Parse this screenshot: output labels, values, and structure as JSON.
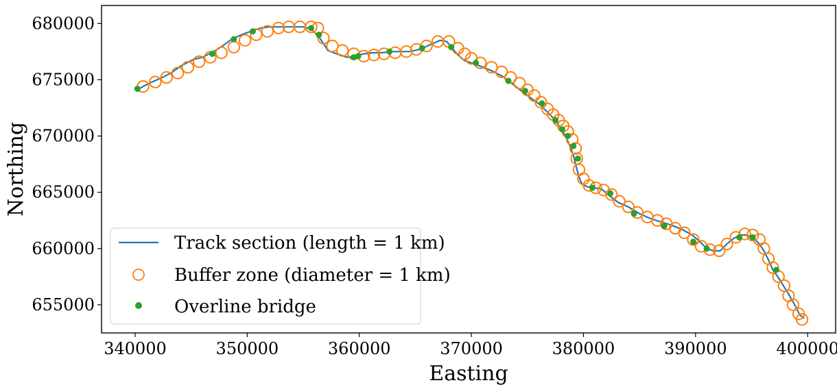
{
  "chart_data": {
    "type": "scatter",
    "xlabel": "Easting",
    "ylabel": "Northing",
    "xlim": [
      337000,
      402500
    ],
    "ylim": [
      652500,
      681600
    ],
    "xticks": [
      340000,
      350000,
      360000,
      370000,
      380000,
      390000,
      400000
    ],
    "yticks": [
      655000,
      660000,
      665000,
      670000,
      675000,
      680000
    ],
    "xtick_labels": [
      "340000",
      "350000",
      "360000",
      "370000",
      "380000",
      "390000",
      "400000"
    ],
    "ytick_labels": [
      "655000",
      "660000",
      "665000",
      "670000",
      "675000",
      "680000"
    ],
    "grid": false,
    "legend_position": "lower-left",
    "colors": {
      "track": "#1f77b4",
      "buffer": "#ff7f0e",
      "bridge": "#2ca02c"
    },
    "series": [
      {
        "name": "Track section (length = 1 km)",
        "kind": "line",
        "x": [
          340200,
          340700,
          341500,
          342200,
          343200,
          344200,
          345200,
          346000,
          347000,
          347800,
          348600,
          349500,
          350300,
          351200,
          352000,
          353000,
          354000,
          355000,
          355700,
          356400,
          356800,
          357200,
          357700,
          358300,
          358900,
          359600,
          360400,
          361200,
          362000,
          362800,
          363600,
          364500,
          365400,
          366300,
          367200,
          367800,
          368200,
          368800,
          369400,
          370000,
          370800,
          371800,
          372800,
          373700,
          374600,
          375400,
          376100,
          376800,
          377400,
          377900,
          378400,
          378800,
          379100,
          379300,
          379500,
          379700,
          379900,
          380300,
          380900,
          381600,
          382300,
          383100,
          384000,
          385000,
          385900,
          386800,
          387800,
          388800,
          389700,
          390400,
          391000,
          391600,
          392200,
          392800,
          393400,
          394000,
          394600,
          395200,
          395700,
          396100,
          396500,
          396900,
          397400,
          397900,
          398400,
          398900,
          399300,
          399700
        ],
        "y": [
          674100,
          674400,
          674800,
          675100,
          675600,
          676300,
          676800,
          677000,
          677500,
          678000,
          678600,
          679000,
          679300,
          679600,
          679700,
          679700,
          679700,
          679700,
          679500,
          678800,
          678200,
          677600,
          677400,
          677200,
          677000,
          677100,
          677300,
          677400,
          677400,
          677500,
          677500,
          677500,
          677700,
          678100,
          678500,
          678400,
          677900,
          677200,
          676700,
          676500,
          676200,
          675800,
          675300,
          674600,
          673900,
          673300,
          672800,
          672100,
          671500,
          670800,
          670000,
          669100,
          668300,
          667500,
          666700,
          666100,
          665700,
          665500,
          665400,
          665300,
          664700,
          664100,
          663700,
          663100,
          662700,
          662400,
          662100,
          661700,
          661200,
          660600,
          660000,
          659800,
          659800,
          660400,
          660900,
          661200,
          661200,
          660900,
          660400,
          659800,
          659000,
          658100,
          657400,
          656600,
          655800,
          654900,
          654100,
          653800
        ]
      },
      {
        "name": "Buffer zone (diameter = 1 km)",
        "kind": "open-circle",
        "x": [
          340700,
          341800,
          342800,
          343800,
          344700,
          345700,
          346700,
          347700,
          348800,
          349800,
          350800,
          351800,
          352800,
          353700,
          354700,
          355700,
          356300,
          356800,
          357600,
          358500,
          359500,
          360400,
          361300,
          362200,
          363200,
          364200,
          365100,
          366000,
          367000,
          368000,
          368800,
          369400,
          370000,
          370800,
          371800,
          372700,
          373500,
          374300,
          375000,
          375600,
          376200,
          376800,
          377300,
          377800,
          378200,
          378600,
          379000,
          379300,
          379400,
          379600,
          380000,
          380500,
          381100,
          381800,
          382500,
          383200,
          384000,
          384800,
          385700,
          386600,
          387400,
          388200,
          389000,
          389800,
          390500,
          391300,
          392100,
          392800,
          393600,
          394400,
          395100,
          395700,
          396100,
          396500,
          396900,
          397400,
          397900,
          398300,
          398700,
          399200,
          399500
        ],
        "y": [
          674400,
          674800,
          675200,
          675600,
          676100,
          676600,
          677000,
          677400,
          677900,
          678500,
          679000,
          679300,
          679600,
          679700,
          679700,
          679700,
          679600,
          678700,
          678000,
          677600,
          677300,
          677100,
          677200,
          677300,
          677400,
          677500,
          677700,
          678000,
          678400,
          678400,
          677800,
          677300,
          676900,
          676500,
          676100,
          675700,
          675200,
          674700,
          674100,
          673600,
          673000,
          672400,
          671900,
          671400,
          670900,
          670400,
          669700,
          668900,
          668000,
          667000,
          666200,
          665600,
          665400,
          665200,
          664800,
          664200,
          663700,
          663200,
          662800,
          662500,
          662200,
          661800,
          661400,
          660800,
          660200,
          659900,
          659800,
          660400,
          661000,
          661300,
          661200,
          660800,
          660000,
          659100,
          658300,
          657500,
          656700,
          655800,
          655000,
          654200,
          653700
        ]
      },
      {
        "name": "Overline bridge",
        "kind": "filled-dot",
        "x": [
          340200,
          346900,
          348800,
          350500,
          355700,
          356400,
          359500,
          359900,
          362700,
          365600,
          368200,
          370400,
          373300,
          374800,
          376300,
          377500,
          378100,
          378600,
          379100,
          379500,
          380800,
          382400,
          384500,
          387200,
          389800,
          391000,
          393900,
          395100,
          397200
        ],
        "y": [
          674200,
          677300,
          678600,
          679300,
          679600,
          679000,
          677000,
          677100,
          677500,
          677800,
          677900,
          676500,
          674900,
          674000,
          672900,
          671400,
          670600,
          670000,
          669100,
          668000,
          665400,
          664900,
          663100,
          662000,
          660600,
          660000,
          661000,
          661000,
          658100
        ]
      }
    ]
  }
}
